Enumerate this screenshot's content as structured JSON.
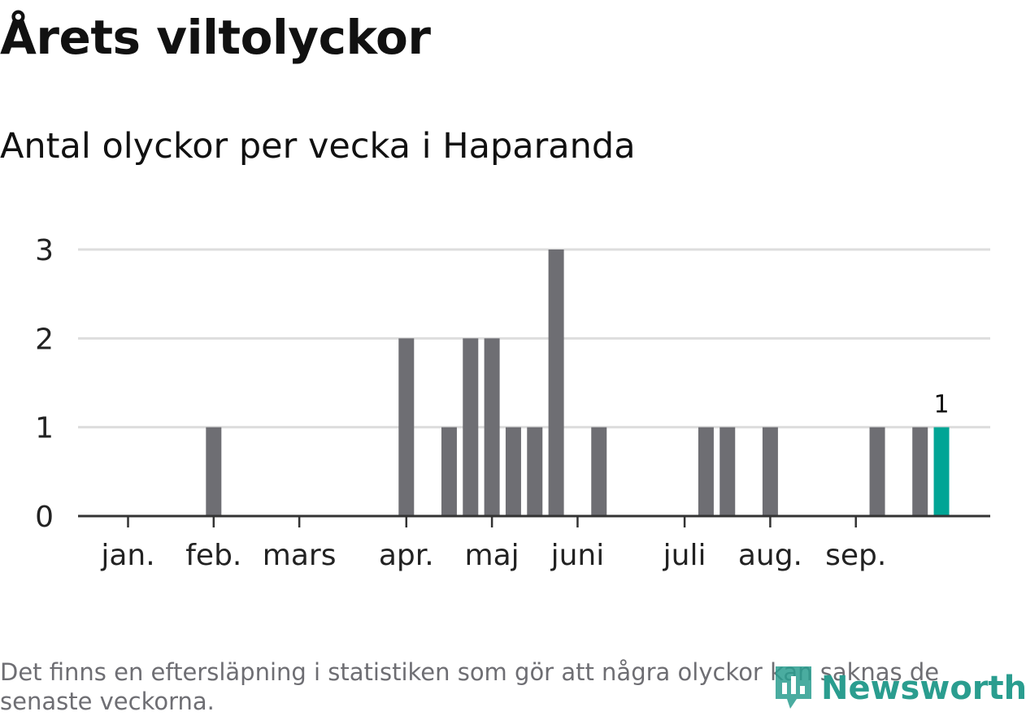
{
  "title": "Årets viltolyckor",
  "subtitle": "Antal olyckor per vecka i Haparanda",
  "footnote": "Det finns en eftersläpning i statistiken som gör att några olyckor kan saknas de senaste veckorna.",
  "logo_text": "Newsworthy",
  "colors": {
    "bar": "#6e6e73",
    "highlight": "#00a595",
    "grid": "#dddddd",
    "axis": "#333333",
    "logo": "#2a9d8f"
  },
  "chart_data": {
    "type": "bar",
    "title": "Årets viltolyckor",
    "subtitle": "Antal olyckor per vecka i Haparanda",
    "xlabel": "",
    "ylabel": "",
    "ylim": [
      0,
      3
    ],
    "yticks": [
      "0",
      "1",
      "2",
      "3"
    ],
    "grid": true,
    "x_unit": "vecka",
    "month_labels": [
      {
        "label": "jan.",
        "week": 1
      },
      {
        "label": "feb.",
        "week": 5
      },
      {
        "label": "mars",
        "week": 9
      },
      {
        "label": "apr.",
        "week": 14
      },
      {
        "label": "maj",
        "week": 18
      },
      {
        "label": "juni",
        "week": 22
      },
      {
        "label": "juli",
        "week": 27
      },
      {
        "label": "aug.",
        "week": 31
      },
      {
        "label": "sep.",
        "week": 35
      }
    ],
    "weeks": [
      1,
      2,
      3,
      4,
      5,
      6,
      7,
      8,
      9,
      10,
      11,
      12,
      13,
      14,
      15,
      16,
      17,
      18,
      19,
      20,
      21,
      22,
      23,
      24,
      25,
      26,
      27,
      28,
      29,
      30,
      31,
      32,
      33,
      34,
      35,
      36,
      37,
      38,
      39,
      40,
      41
    ],
    "values": [
      0,
      0,
      0,
      0,
      1,
      0,
      0,
      0,
      0,
      0,
      0,
      0,
      0,
      2,
      0,
      1,
      2,
      2,
      1,
      1,
      3,
      0,
      1,
      0,
      0,
      0,
      0,
      1,
      1,
      0,
      1,
      0,
      0,
      0,
      0,
      1,
      0,
      1,
      1,
      0,
      0
    ],
    "highlight_week": 39,
    "data_labels": [
      {
        "week": 39,
        "label": "1"
      }
    ]
  }
}
